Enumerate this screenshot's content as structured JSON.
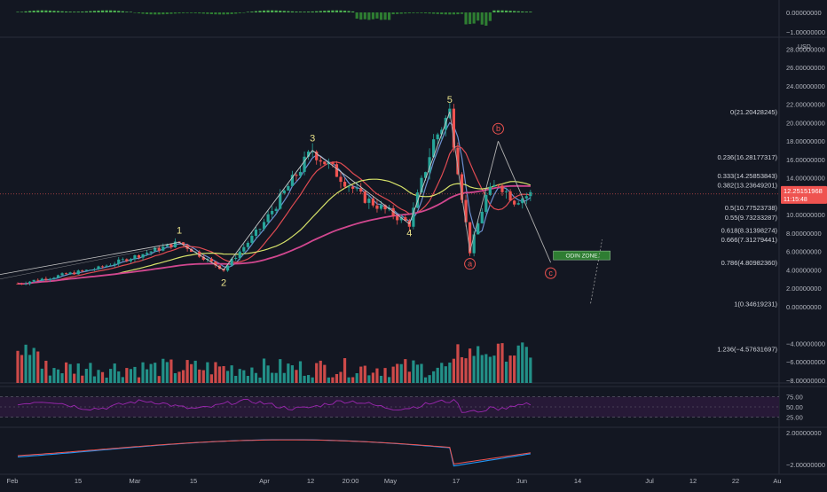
{
  "chart_data": {
    "type": "candlestick",
    "currency": "USD",
    "price_axis": {
      "ticks": [
        "28.00000000",
        "26.00000000",
        "24.00000000",
        "22.00000000",
        "20.00000000",
        "18.00000000",
        "16.00000000",
        "14.00000000",
        "12.00000000",
        "10.00000000",
        "8.00000000",
        "6.00000000",
        "4.00000000",
        "2.00000000",
        "0.00000000",
        "−4.00000000",
        "−6.00000000",
        "−8.00000000"
      ],
      "tick_values": [
        28,
        26,
        24,
        22,
        20,
        18,
        16,
        14,
        12,
        10,
        8,
        6,
        4,
        2,
        0,
        -4,
        -6,
        -8
      ],
      "range": [
        -8.3,
        29.3
      ]
    },
    "top_oscillator_axis": {
      "ticks": [
        "0.00000000",
        "−1.00000000"
      ]
    },
    "rsi_axis": {
      "ticks": [
        "75.00",
        "50.00",
        "25.00"
      ]
    },
    "bottom_oscillator_axis": {
      "ticks": [
        "2.00000000",
        "−2.00000000"
      ]
    },
    "time_axis": {
      "labels": [
        "Feb",
        "15",
        "Mar",
        "15",
        "Apr",
        "12",
        "20:00",
        "May",
        "17",
        "Jun",
        "14",
        "Jul",
        "12",
        "22",
        "Au"
      ]
    },
    "current_price": {
      "value": "12.25151968",
      "countdown": "11:15:48",
      "level": 12.25
    },
    "fibonacci_levels": [
      {
        "label": "0(21.20428245)",
        "value": 21.2
      },
      {
        "label": "0.236(16.28177317)",
        "value": 16.28
      },
      {
        "label": "0.333(14.25853843)",
        "value": 14.26
      },
      {
        "label": "0.382(13.23649201)",
        "value": 13.24
      },
      {
        "label": "0.5(10.77523738)",
        "value": 10.78
      },
      {
        "label": "0.55(9.73233287)",
        "value": 9.73
      },
      {
        "label": "0.618(8.31398274)",
        "value": 8.31
      },
      {
        "label": "0.666(7.31279441)",
        "value": 7.31
      },
      {
        "label": "0.786(4.80982360)",
        "value": 4.81
      },
      {
        "label": "1(0.34619231)",
        "value": 0.35
      },
      {
        "label": "1.236(−4.57631697)",
        "value": -4.58
      }
    ],
    "wave_labels": [
      "1",
      "2",
      "3",
      "4",
      "5",
      "a",
      "b",
      "c"
    ],
    "zone_label": "ODIN ZONE",
    "wave_points": [
      {
        "label": "1",
        "x_day": 40,
        "y": 7.0
      },
      {
        "label": "2",
        "x_day": 51,
        "y": 4.0
      },
      {
        "label": "3",
        "x_day": 73,
        "y": 17.0
      },
      {
        "label": "4",
        "x_day": 97,
        "y": 9.0
      },
      {
        "label": "5",
        "x_day": 107,
        "y": 21.2
      },
      {
        "label": "a",
        "x_day": 112,
        "y": 6.0
      },
      {
        "label": "b",
        "x_day": 119,
        "y": 18.0
      },
      {
        "label": "c",
        "x_day": 132,
        "y": 4.8
      }
    ],
    "colors": {
      "background": "#131722",
      "up": "#26a69a",
      "down": "#ef5350",
      "ma_fast": "#6d8fcf",
      "ma_mid": "#e04b52",
      "ma_slow": "#d7e36a",
      "ma_long": "#d1478f",
      "wave_line": "#c8c8c8",
      "price_tag": "#ef5350",
      "zone": "#2e7d32"
    }
  }
}
